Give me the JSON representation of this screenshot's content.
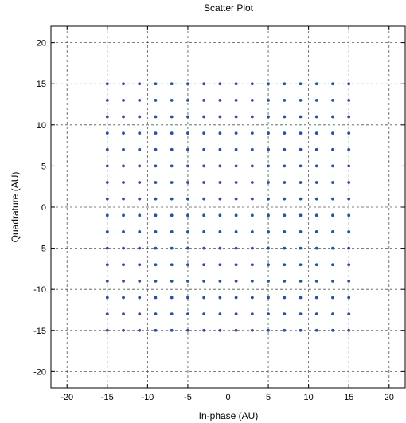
{
  "chart_data": {
    "type": "scatter",
    "title": "Scatter Plot",
    "xlabel": "In-phase (AU)",
    "ylabel": "Quadrature (AU)",
    "xlim": [
      -22,
      22
    ],
    "ylim": [
      -22,
      22
    ],
    "xticks": [
      -20,
      -15,
      -10,
      -5,
      0,
      5,
      10,
      15,
      20
    ],
    "yticks": [
      -20,
      -15,
      -10,
      -5,
      0,
      5,
      10,
      15,
      20
    ],
    "grid": true,
    "point_color": "#2b4fa3",
    "series": [
      {
        "constellation": "256-QAM",
        "levels_x": [
          -15,
          -13,
          -11,
          -9,
          -7,
          -5,
          -3,
          -1,
          1,
          3,
          5,
          7,
          9,
          11,
          13,
          15
        ],
        "levels_y": [
          -15,
          -13,
          -11,
          -9,
          -7,
          -5,
          -3,
          -1,
          1,
          3,
          5,
          7,
          9,
          11,
          13,
          15
        ]
      }
    ]
  }
}
